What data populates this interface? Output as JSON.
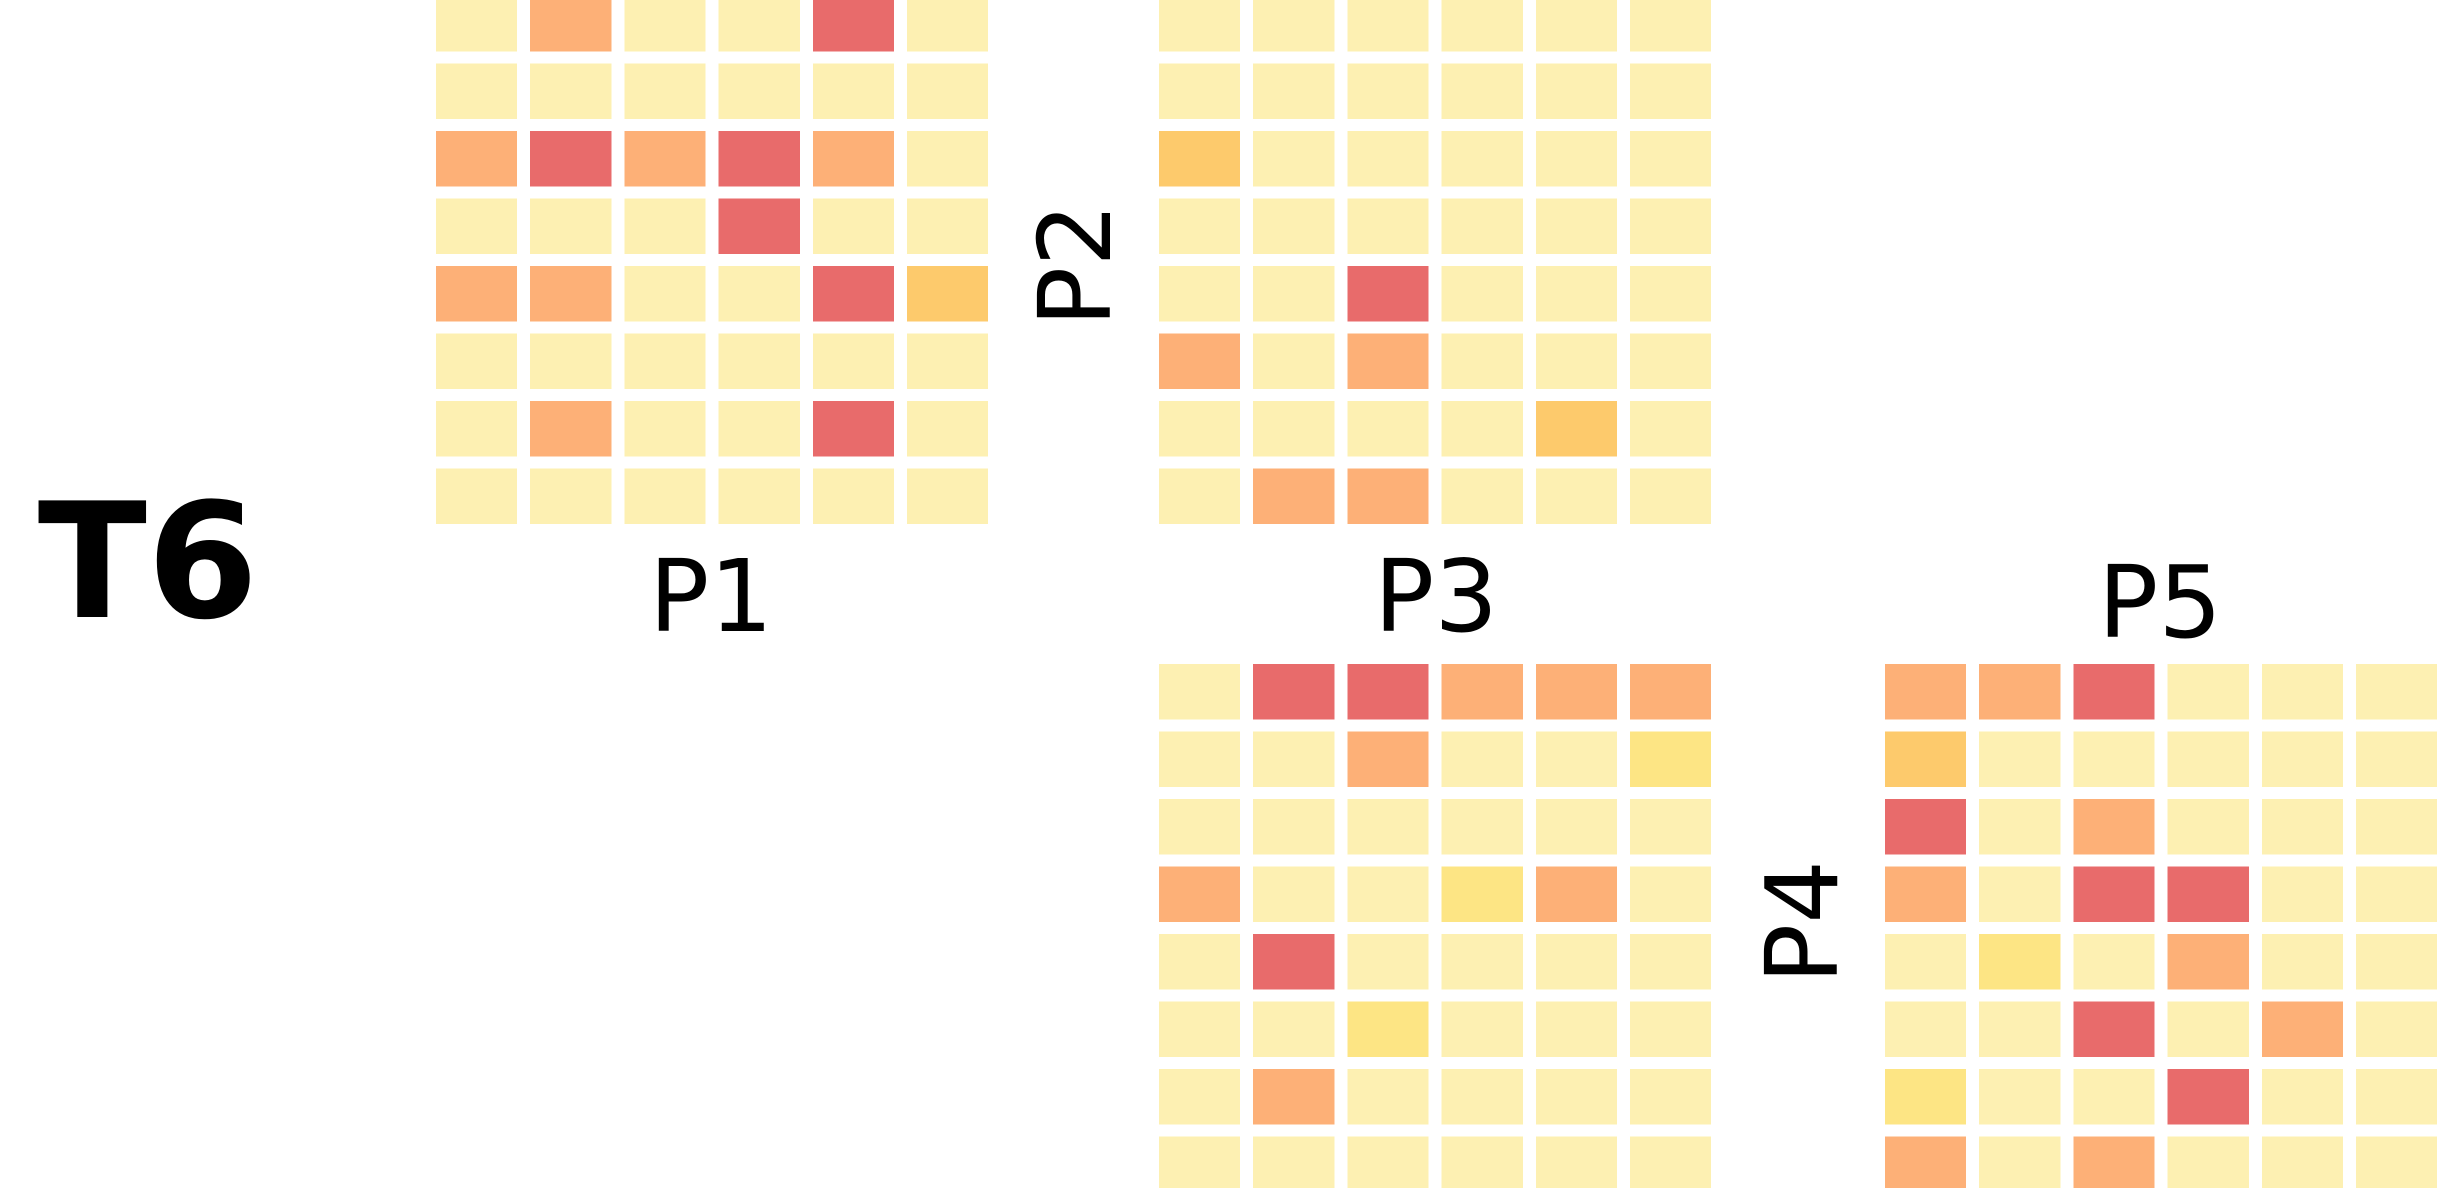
{
  "figure": {
    "title": "T6",
    "labels": {
      "p1": "P1",
      "p2": "P2",
      "p3": "P3",
      "p4": "P4",
      "p5": "P5"
    }
  },
  "colors": {
    "0": "#fdf0b2",
    "1": "#fde584",
    "2": "#fdca6c",
    "3": "#fdb077",
    "4": "#e86b6b",
    "text": "#000000",
    "background": "#ffffff"
  },
  "chart_data": [
    {
      "type": "heatmap",
      "title": "P1",
      "rows": 8,
      "cols": 6,
      "values": [
        [
          0,
          3,
          0,
          0,
          4,
          0
        ],
        [
          0,
          0,
          0,
          0,
          0,
          0
        ],
        [
          3,
          4,
          3,
          4,
          3,
          0
        ],
        [
          0,
          0,
          0,
          4,
          0,
          0
        ],
        [
          3,
          3,
          0,
          0,
          4,
          2
        ],
        [
          0,
          0,
          0,
          0,
          0,
          0
        ],
        [
          0,
          3,
          0,
          0,
          4,
          0
        ],
        [
          0,
          0,
          0,
          0,
          0,
          0
        ]
      ]
    },
    {
      "type": "heatmap",
      "title": "P2",
      "rows": 8,
      "cols": 6,
      "values": [
        [
          0,
          0,
          0,
          0,
          0,
          0
        ],
        [
          0,
          0,
          0,
          0,
          0,
          0
        ],
        [
          2,
          0,
          0,
          0,
          0,
          0
        ],
        [
          0,
          0,
          0,
          0,
          0,
          0
        ],
        [
          0,
          0,
          4,
          0,
          0,
          0
        ],
        [
          3,
          0,
          3,
          0,
          0,
          0
        ],
        [
          0,
          0,
          0,
          0,
          2,
          0
        ],
        [
          0,
          3,
          3,
          0,
          0,
          0
        ]
      ]
    },
    {
      "type": "heatmap",
      "title": "P3",
      "rows": 8,
      "cols": 6,
      "values": [
        [
          0,
          4,
          4,
          3,
          3,
          3
        ],
        [
          0,
          0,
          3,
          0,
          0,
          1
        ],
        [
          0,
          0,
          0,
          0,
          0,
          0
        ],
        [
          3,
          0,
          0,
          1,
          3,
          0
        ],
        [
          0,
          4,
          0,
          0,
          0,
          0
        ],
        [
          0,
          0,
          1,
          0,
          0,
          0
        ],
        [
          0,
          3,
          0,
          0,
          0,
          0
        ],
        [
          0,
          0,
          0,
          0,
          0,
          0
        ]
      ]
    },
    {
      "type": "heatmap",
      "title": "P4",
      "rows": 8,
      "cols": 6,
      "values": [
        [
          3,
          3,
          4,
          0,
          0,
          0
        ],
        [
          2,
          0,
          0,
          0,
          0,
          0
        ],
        [
          4,
          0,
          3,
          0,
          0,
          0
        ],
        [
          3,
          0,
          4,
          4,
          0,
          0
        ],
        [
          0,
          1,
          0,
          3,
          0,
          0
        ],
        [
          0,
          0,
          4,
          0,
          3,
          0
        ],
        [
          1,
          0,
          0,
          4,
          0,
          0
        ],
        [
          3,
          0,
          3,
          0,
          0,
          0
        ]
      ]
    }
  ]
}
